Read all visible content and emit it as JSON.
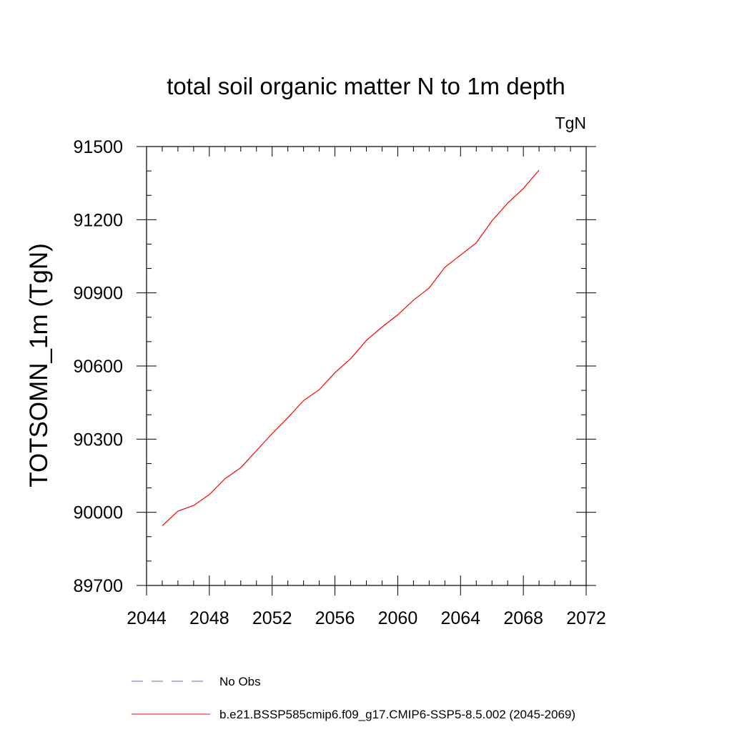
{
  "chart_data": {
    "type": "line",
    "title": "total soil organic matter N to 1m depth",
    "units_label": "TgN",
    "ylabel": "TOTSOMN_1m  (TgN)",
    "xlabel": "",
    "xlim": [
      2044,
      2072
    ],
    "ylim": [
      89700,
      91500
    ],
    "x_ticks": [
      2044,
      2048,
      2052,
      2056,
      2060,
      2064,
      2068,
      2072
    ],
    "y_ticks": [
      89700,
      90000,
      90300,
      90600,
      90900,
      91200,
      91500
    ],
    "grid": false,
    "legend_position": "bottom",
    "series": [
      {
        "name": "No Obs",
        "color": "#6b5bd6",
        "dash": "dashed",
        "x": [],
        "y": []
      },
      {
        "name": "b.e21.BSSP585cmip6.f09_g17.CMIP6-SSP5-8.5.002 (2045-2069)",
        "color": "#ff0000",
        "dash": "solid",
        "x": [
          2045,
          2046,
          2047,
          2048,
          2049,
          2050,
          2051,
          2052,
          2053,
          2054,
          2055,
          2056,
          2057,
          2058,
          2059,
          2060,
          2061,
          2062,
          2063,
          2064,
          2065,
          2066,
          2067,
          2068,
          2069
        ],
        "y": [
          89945,
          90005,
          90028,
          90073,
          90138,
          90183,
          90253,
          90323,
          90388,
          90458,
          90503,
          90573,
          90630,
          90705,
          90760,
          90810,
          90870,
          90920,
          91005,
          91055,
          91105,
          91195,
          91268,
          91328,
          91403
        ]
      }
    ]
  }
}
